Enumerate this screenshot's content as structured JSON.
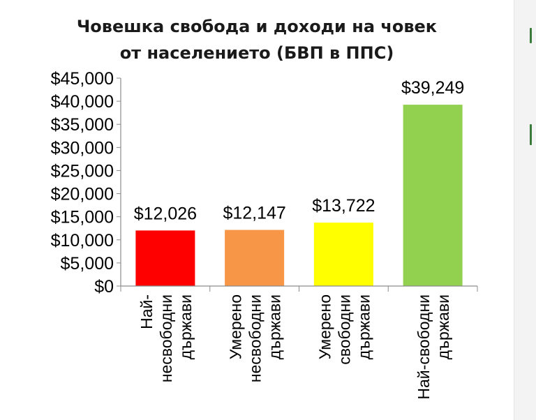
{
  "chart_data": {
    "type": "bar",
    "title_lines": [
      "Човешка свобода и доходи на човек",
      "от населението (БВП в ППС)"
    ],
    "categories": [
      [
        "Най-",
        "несвободни",
        "държави"
      ],
      [
        "Умерено",
        "несвободни",
        "държави"
      ],
      [
        "Умерено",
        "свободни",
        "държави"
      ],
      [
        "Най-свободни",
        "държави"
      ]
    ],
    "values": [
      12026,
      12147,
      13722,
      39249
    ],
    "value_labels": [
      "$12,026",
      "$12,147",
      "$13,722",
      "$39,249"
    ],
    "colors": [
      "#ff0000",
      "#f79646",
      "#ffff00",
      "#92d050"
    ],
    "yticks": [
      0,
      5000,
      10000,
      15000,
      20000,
      25000,
      30000,
      35000,
      40000,
      45000
    ],
    "ytick_labels": [
      "$0",
      "$5,000",
      "$10,000",
      "$15,000",
      "$20,000",
      "$25,000",
      "$30,000",
      "$35,000",
      "$40,000",
      "$45,000"
    ],
    "ylim": [
      0,
      45000
    ],
    "grid": false,
    "legend": "none"
  }
}
